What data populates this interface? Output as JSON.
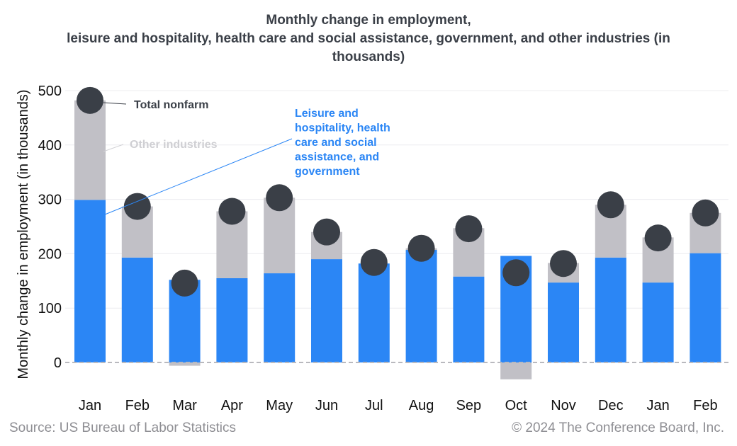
{
  "chart_data": {
    "type": "bar",
    "title_lines": [
      "Monthly change in employment,",
      "leisure and hospitality, health care and social assistance, government, and other industries (in",
      "thousands)"
    ],
    "ylabel": "Monthly change in employment (in thousands)",
    "ylim": [
      -40,
      520
    ],
    "yticks": [
      0,
      100,
      200,
      300,
      400,
      500
    ],
    "categories": [
      "Jan",
      "Feb",
      "Mar",
      "Apr",
      "May",
      "Jun",
      "Jul",
      "Aug",
      "Sep",
      "Oct",
      "Nov",
      "Dec",
      "Jan",
      "Feb"
    ],
    "series": [
      {
        "name": "Leisure and hospitality, health care and social assistance, and government",
        "color": "#2b86f5",
        "values": [
          299,
          193,
          152,
          155,
          164,
          190,
          182,
          207,
          158,
          196,
          147,
          193,
          147,
          201
        ]
      },
      {
        "name": "Other industries",
        "color": "#c1c0c6",
        "values": [
          183,
          94,
          -6,
          123,
          139,
          50,
          0,
          3,
          89,
          -31,
          36,
          97,
          83,
          74
        ]
      },
      {
        "name": "Total nonfarm",
        "color": "#3a3f47",
        "values": [
          482,
          287,
          146,
          278,
          303,
          240,
          184,
          210,
          246,
          165,
          182,
          290,
          229,
          275
        ]
      }
    ],
    "annotations": {
      "total": "Total nonfarm",
      "other": "Other industries",
      "leisure_lines": [
        "Leisure and",
        "hospitality, health",
        "care and social",
        "assistance, and",
        "government"
      ]
    }
  },
  "footer": {
    "source": "Source: US Bureau of Labor Statistics",
    "copyright": "© 2024 The Conference Board, Inc."
  }
}
